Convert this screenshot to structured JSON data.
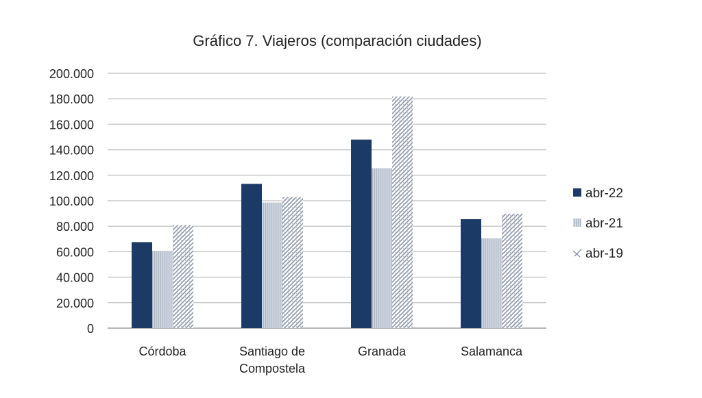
{
  "chart_data": {
    "type": "bar",
    "title": "Gráfico 7. Viajeros (comparación ciudades)",
    "xlabel": "",
    "ylabel": "",
    "categories": [
      "Córdoba",
      "Santiago de Compostela",
      "Granada",
      "Salamanca"
    ],
    "category_lines": [
      [
        "Córdoba"
      ],
      [
        "Santiago de",
        "Compostela"
      ],
      [
        "Granada"
      ],
      [
        "Salamanca"
      ]
    ],
    "series": [
      {
        "name": "abr-22",
        "values": [
          67500,
          113200,
          148000,
          85500
        ],
        "color": "#1b3a66",
        "fill": "solid"
      },
      {
        "name": "abr-21",
        "values": [
          60700,
          98600,
          125500,
          70500
        ],
        "color": "#bfc8d6",
        "fill": "vertical-stripes"
      },
      {
        "name": "abr-19",
        "values": [
          80900,
          102800,
          181800,
          89800
        ],
        "color": "#8a96a8",
        "fill": "diagonal-hatch"
      }
    ],
    "ylim": [
      0,
      200000
    ],
    "yticks": [
      "0",
      "20.000",
      "40.000",
      "60.000",
      "80.000",
      "100.000",
      "120.000",
      "140.000",
      "160.000",
      "180.000",
      "200.000"
    ],
    "grid": true,
    "legend_position": "right"
  }
}
